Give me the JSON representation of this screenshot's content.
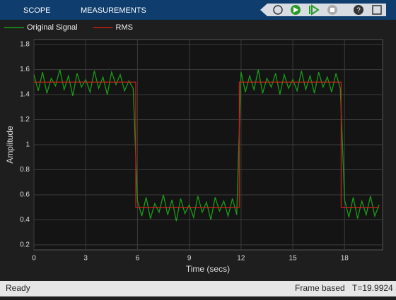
{
  "toolbar": {
    "tabs": [
      "SCOPE",
      "MEASUREMENTS"
    ]
  },
  "status": {
    "left": "Ready",
    "mode": "Frame based",
    "time": "T=19.9924"
  },
  "chart_data": {
    "type": "line",
    "xlabel": "Time (secs)",
    "ylabel": "Amplitude",
    "xlim": [
      0,
      20.2
    ],
    "ylim": [
      0.16,
      1.84
    ],
    "xticks": [
      0,
      3,
      6,
      9,
      12,
      15,
      18
    ],
    "yticks": [
      0.2,
      0.4,
      0.6,
      0.8,
      1,
      1.2,
      1.4,
      1.6,
      1.8
    ],
    "grid": true,
    "legend": "top",
    "series": [
      {
        "name": "Original Signal",
        "color": "#1a9a1a",
        "x": [
          0,
          0.25,
          0.5,
          0.75,
          1,
          1.25,
          1.5,
          1.75,
          2,
          2.25,
          2.5,
          2.75,
          3,
          3.25,
          3.5,
          3.75,
          4,
          4.25,
          4.5,
          4.75,
          5,
          5.25,
          5.5,
          5.75,
          6,
          6.25,
          6.5,
          6.75,
          7,
          7.25,
          7.5,
          7.75,
          8,
          8.25,
          8.5,
          8.75,
          9,
          9.25,
          9.5,
          9.75,
          10,
          10.25,
          10.5,
          10.75,
          11,
          11.25,
          11.5,
          11.75,
          12,
          12.25,
          12.5,
          12.75,
          13,
          13.25,
          13.5,
          13.75,
          14,
          14.25,
          14.5,
          14.75,
          15,
          15.25,
          15.5,
          15.75,
          16,
          16.25,
          16.5,
          16.75,
          17,
          17.25,
          17.5,
          17.75,
          18,
          18.25,
          18.5,
          18.75,
          19,
          19.25,
          19.5,
          19.75,
          20
        ],
        "values": [
          1.56,
          1.43,
          1.58,
          1.41,
          1.53,
          1.47,
          1.6,
          1.44,
          1.55,
          1.39,
          1.57,
          1.46,
          1.52,
          1.42,
          1.59,
          1.45,
          1.54,
          1.4,
          1.58,
          1.48,
          1.56,
          1.43,
          1.51,
          1.45,
          0.55,
          0.43,
          0.58,
          0.41,
          0.53,
          0.46,
          0.6,
          0.44,
          0.56,
          0.39,
          0.57,
          0.45,
          0.52,
          0.42,
          0.59,
          0.46,
          0.54,
          0.4,
          0.58,
          0.47,
          0.55,
          0.43,
          0.57,
          0.44,
          1.58,
          1.42,
          1.55,
          1.44,
          1.6,
          1.41,
          1.53,
          1.46,
          1.57,
          1.4,
          1.56,
          1.45,
          1.52,
          1.43,
          1.59,
          1.44,
          1.55,
          1.41,
          1.58,
          1.46,
          1.54,
          1.42,
          1.57,
          1.45,
          0.56,
          0.42,
          0.58,
          0.41,
          0.55,
          0.44,
          0.59,
          0.43,
          0.52
        ]
      },
      {
        "name": "RMS",
        "color": "#c0201a",
        "x": [
          0,
          5.9,
          5.9,
          11.9,
          11.9,
          17.8,
          17.8,
          20
        ],
        "values": [
          1.5,
          1.5,
          0.5,
          0.5,
          1.5,
          1.5,
          0.5,
          0.5
        ]
      }
    ]
  }
}
